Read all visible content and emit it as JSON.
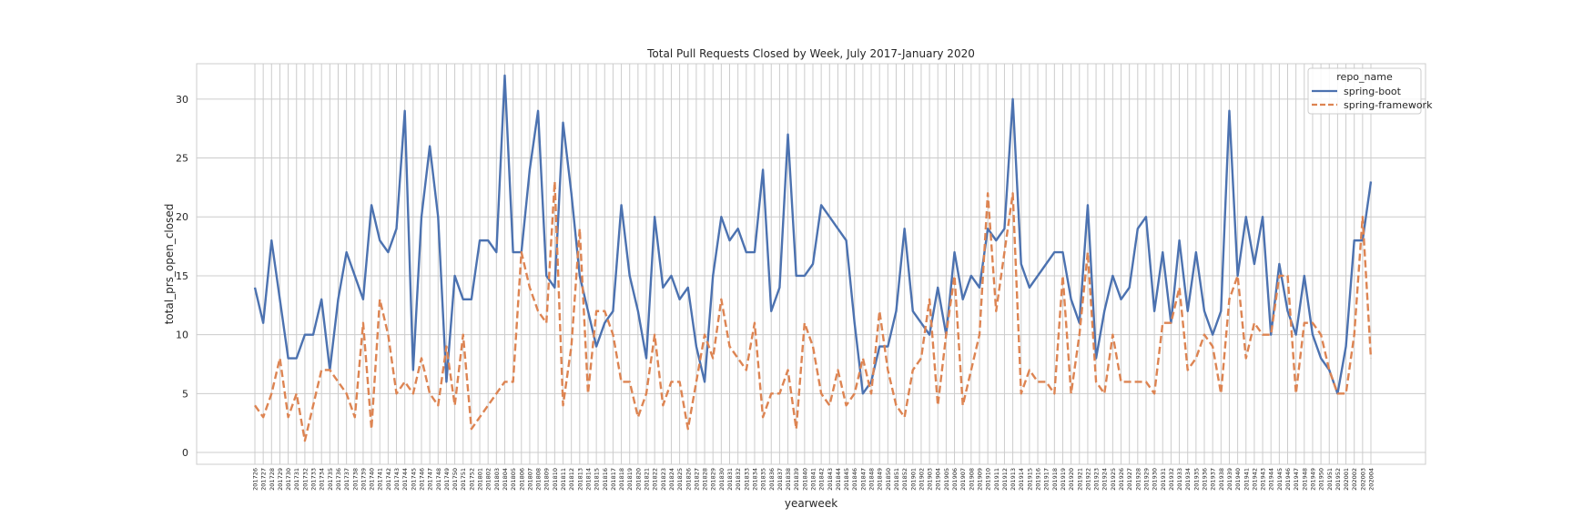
{
  "chart_data": {
    "type": "line",
    "title": "Total Pull Requests Closed by Week, July 2017-January 2020",
    "xlabel": "yearweek",
    "ylabel": "total_prs_open_closed",
    "ylim": [
      -1,
      33
    ],
    "yticks": [
      0,
      5,
      10,
      15,
      20,
      25,
      30
    ],
    "grid": true,
    "legend": {
      "title": "repo_name",
      "placement": "top-right"
    },
    "x": [
      "201726",
      "201727",
      "201728",
      "201729",
      "201730",
      "201731",
      "201732",
      "201733",
      "201734",
      "201735",
      "201736",
      "201737",
      "201738",
      "201739",
      "201740",
      "201741",
      "201742",
      "201743",
      "201744",
      "201745",
      "201746",
      "201747",
      "201748",
      "201749",
      "201750",
      "201751",
      "201752",
      "201801",
      "201802",
      "201803",
      "201804",
      "201805",
      "201806",
      "201807",
      "201808",
      "201809",
      "201810",
      "201811",
      "201812",
      "201813",
      "201814",
      "201815",
      "201816",
      "201817",
      "201818",
      "201819",
      "201820",
      "201821",
      "201822",
      "201823",
      "201824",
      "201825",
      "201826",
      "201827",
      "201828",
      "201829",
      "201830",
      "201831",
      "201832",
      "201833",
      "201834",
      "201835",
      "201836",
      "201837",
      "201838",
      "201839",
      "201840",
      "201841",
      "201842",
      "201843",
      "201844",
      "201845",
      "201846",
      "201847",
      "201848",
      "201849",
      "201850",
      "201851",
      "201852",
      "201901",
      "201902",
      "201903",
      "201904",
      "201905",
      "201906",
      "201907",
      "201908",
      "201909",
      "201910",
      "201911",
      "201912",
      "201913",
      "201914",
      "201915",
      "201916",
      "201917",
      "201918",
      "201919",
      "201920",
      "201921",
      "201922",
      "201923",
      "201924",
      "201925",
      "201926",
      "201927",
      "201928",
      "201929",
      "201930",
      "201931",
      "201932",
      "201933",
      "201934",
      "201935",
      "201936",
      "201937",
      "201938",
      "201939",
      "201940",
      "201941",
      "201942",
      "201943",
      "201944",
      "201945",
      "201946",
      "201947",
      "201948",
      "201949",
      "201950",
      "201951",
      "201952",
      "202001",
      "202002",
      "202003",
      "202004"
    ],
    "series": [
      {
        "name": "spring-boot",
        "color": "#4c72b0",
        "dash": "solid",
        "values": [
          14,
          11,
          18,
          13,
          8,
          8,
          10,
          10,
          13,
          7,
          13,
          17,
          15,
          13,
          21,
          18,
          17,
          19,
          29,
          7,
          20,
          26,
          20,
          6,
          15,
          13,
          13,
          18,
          18,
          17,
          32,
          17,
          17,
          24,
          29,
          15,
          14,
          28,
          22,
          15,
          12,
          9,
          11,
          12,
          21,
          15,
          12,
          8,
          20,
          14,
          15,
          13,
          14,
          9,
          6,
          15,
          20,
          18,
          19,
          17,
          17,
          24,
          12,
          14,
          27,
          15,
          15,
          16,
          21,
          20,
          19,
          18,
          11,
          5,
          6,
          9,
          9,
          12,
          19,
          12,
          11,
          10,
          14,
          10,
          17,
          13,
          15,
          14,
          19,
          18,
          19,
          30,
          16,
          14,
          15,
          16,
          17,
          17,
          13,
          11,
          21,
          8,
          12,
          15,
          13,
          14,
          19,
          20,
          12,
          17,
          11,
          18,
          12,
          17,
          12,
          10,
          12,
          29,
          15,
          20,
          16,
          20,
          10,
          16,
          12,
          10,
          15,
          10,
          8,
          7,
          5,
          9,
          18,
          18,
          23
        ]
      },
      {
        "name": "spring-framework",
        "color": "#dd8452",
        "dash": "dashed",
        "values": [
          4,
          3,
          5,
          8,
          3,
          5,
          1,
          4,
          7,
          7,
          6,
          5,
          3,
          11,
          2,
          13,
          10,
          5,
          6,
          5,
          8,
          5,
          4,
          9,
          4,
          10,
          2,
          3,
          4,
          5,
          6,
          6,
          17,
          14,
          12,
          11,
          23,
          4,
          9,
          19,
          5,
          12,
          12,
          10,
          6,
          6,
          3,
          5,
          10,
          4,
          6,
          6,
          2,
          6,
          10,
          8,
          13,
          9,
          8,
          7,
          11,
          3,
          5,
          5,
          7,
          2,
          11,
          9,
          5,
          4,
          7,
          4,
          5,
          8,
          5,
          12,
          7,
          4,
          3,
          7,
          8,
          13,
          4,
          10,
          15,
          4,
          7,
          10,
          22,
          12,
          17,
          22,
          5,
          7,
          6,
          6,
          5,
          15,
          5,
          10,
          17,
          6,
          5,
          10,
          6,
          6,
          6,
          6,
          5,
          11,
          11,
          14,
          7,
          8,
          10,
          9,
          5,
          13,
          15,
          8,
          11,
          10,
          10,
          15,
          15,
          5,
          11,
          11,
          10,
          7,
          5,
          5,
          10,
          20,
          8
        ]
      }
    ]
  }
}
